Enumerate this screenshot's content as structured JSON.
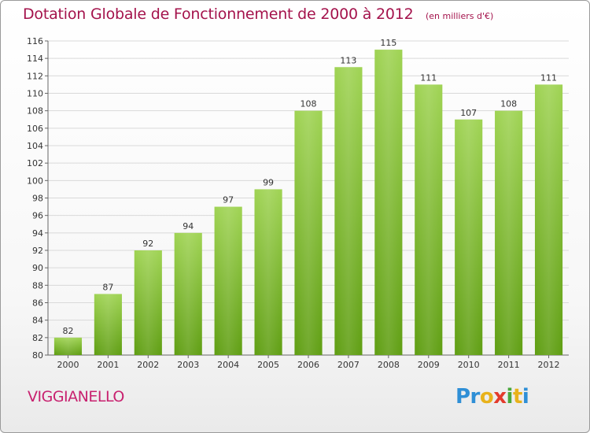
{
  "header": {
    "title": "Dotation Globale de Fonctionnement de 2000 à 2012",
    "subtitle": "(en milliers d'€)"
  },
  "footer": {
    "commune": "VIGGIANELLO",
    "logo": [
      "Pr",
      "o",
      "x",
      "i",
      "t",
      "i"
    ],
    "logo_colors": [
      "#2f8fd6",
      "#e8b21b",
      "#e33b2c",
      "#4aa83c",
      "#e8b21b",
      "#2f8fd6"
    ]
  },
  "chart_data": {
    "type": "bar",
    "title": "Dotation Globale de Fonctionnement de 2000 à 2012",
    "subtitle": "(en milliers d'€)",
    "categories": [
      "2000",
      "2001",
      "2002",
      "2003",
      "2004",
      "2005",
      "2006",
      "2007",
      "2008",
      "2009",
      "2010",
      "2011",
      "2012"
    ],
    "values": [
      82,
      87,
      92,
      94,
      97,
      99,
      108,
      113,
      115,
      111,
      107,
      108,
      111
    ],
    "ylim": [
      80,
      116
    ],
    "yticks": [
      80,
      82,
      84,
      86,
      88,
      90,
      92,
      94,
      96,
      98,
      100,
      102,
      104,
      106,
      108,
      110,
      112,
      114,
      116
    ],
    "grid": true,
    "bar_color": "#8ac43f",
    "xlabel": "",
    "ylabel": ""
  }
}
